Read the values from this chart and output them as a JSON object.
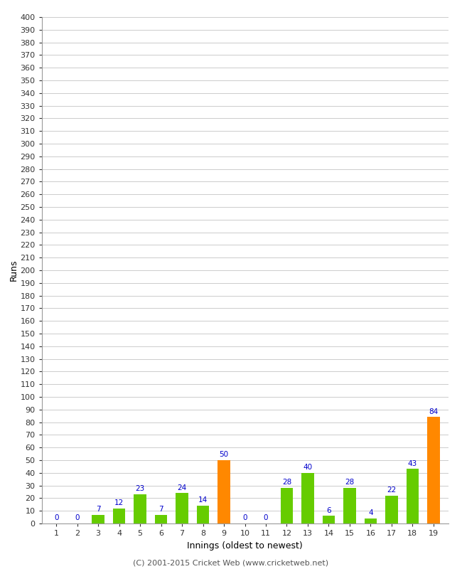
{
  "innings": [
    1,
    2,
    3,
    4,
    5,
    6,
    7,
    8,
    9,
    10,
    11,
    12,
    13,
    14,
    15,
    16,
    17,
    18,
    19
  ],
  "runs": [
    0,
    0,
    7,
    12,
    23,
    7,
    24,
    14,
    50,
    0,
    0,
    28,
    40,
    6,
    28,
    4,
    22,
    43,
    84
  ],
  "bar_colors": [
    "#66cc00",
    "#66cc00",
    "#66cc00",
    "#66cc00",
    "#66cc00",
    "#66cc00",
    "#66cc00",
    "#66cc00",
    "#ff8800",
    "#66cc00",
    "#66cc00",
    "#66cc00",
    "#66cc00",
    "#66cc00",
    "#66cc00",
    "#66cc00",
    "#66cc00",
    "#66cc00",
    "#ff8800"
  ],
  "xlabel": "Innings (oldest to newest)",
  "ylabel": "Runs",
  "yticks": [
    0,
    10,
    20,
    30,
    40,
    50,
    60,
    70,
    80,
    90,
    100,
    110,
    120,
    130,
    140,
    150,
    160,
    170,
    180,
    190,
    200,
    210,
    220,
    230,
    240,
    250,
    260,
    270,
    280,
    290,
    300,
    310,
    320,
    330,
    340,
    350,
    360,
    370,
    380,
    390,
    400
  ],
  "ylim": [
    0,
    400
  ],
  "background_color": "#ffffff",
  "grid_color": "#cccccc",
  "label_color": "#0000cc",
  "footer": "(C) 2001-2015 Cricket Web (www.cricketweb.net)",
  "spine_color": "#999999"
}
